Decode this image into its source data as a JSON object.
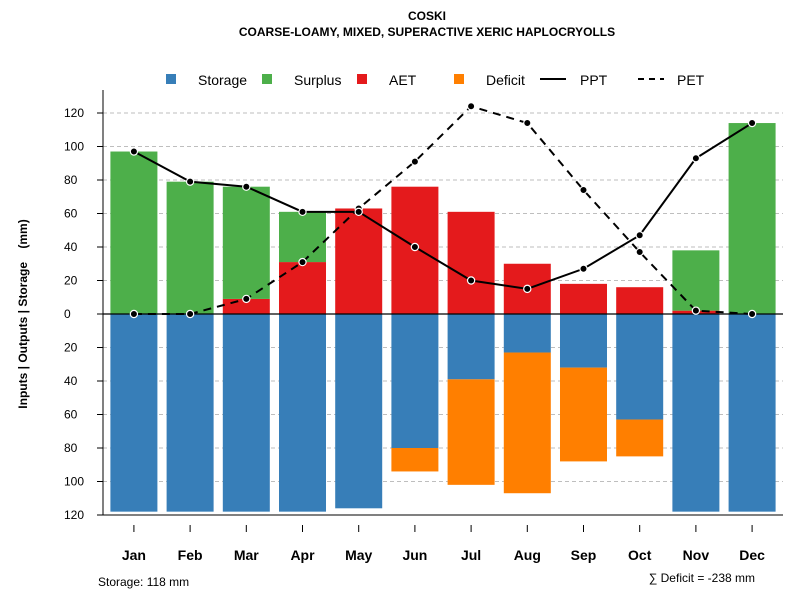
{
  "header": {
    "title": "COSKI",
    "subtitle": "COARSE-LOAMY, MIXED, SUPERACTIVE XERIC HAPLOCRYOLLS"
  },
  "legend": {
    "storage": "Storage",
    "surplus": "Surplus",
    "aet": "AET",
    "deficit": "Deficit",
    "ppt": "PPT",
    "pet": "PET"
  },
  "footer": {
    "storage_note": "Storage: 118 mm",
    "deficit_note": "∑ Deficit = -238 mm"
  },
  "colors": {
    "storage": "#377EB8",
    "surplus": "#4DAF4A",
    "aet": "#E41A1C",
    "deficit": "#FF7F00",
    "line": "#000000",
    "grid": "#BEBEBE"
  },
  "chart_data": {
    "type": "bar",
    "title": "COSKI",
    "subtitle": "COARSE-LOAMY, MIXED, SUPERACTIVE XERIC HAPLOCRYOLLS",
    "ylabel": "Inputs | Outputs | Storage    (mm)",
    "ylim": [
      -120,
      130
    ],
    "yticks": [
      120,
      100,
      80,
      60,
      40,
      20,
      0,
      -20,
      -40,
      -60,
      -80,
      -100,
      -120
    ],
    "ytick_labels": [
      "120",
      "100",
      "80",
      "60",
      "40",
      "20",
      "0",
      "20",
      "40",
      "60",
      "80",
      "100",
      "120"
    ],
    "categories": [
      "Jan",
      "Feb",
      "Mar",
      "Apr",
      "May",
      "Jun",
      "Jul",
      "Aug",
      "Sep",
      "Oct",
      "Nov",
      "Dec"
    ],
    "series": [
      {
        "name": "AET",
        "kind": "bar-up",
        "values": [
          0,
          0,
          9,
          31,
          63,
          76,
          61,
          30,
          18,
          16,
          2,
          0
        ]
      },
      {
        "name": "Surplus",
        "kind": "bar-up",
        "values": [
          97,
          79,
          67,
          30,
          0,
          0,
          0,
          0,
          0,
          0,
          36,
          114
        ]
      },
      {
        "name": "Storage",
        "kind": "bar-down",
        "values": [
          118,
          118,
          118,
          118,
          116,
          80,
          39,
          23,
          32,
          63,
          118,
          118
        ]
      },
      {
        "name": "Deficit",
        "kind": "bar-down",
        "values": [
          0,
          0,
          0,
          0,
          0,
          14,
          63,
          84,
          56,
          22,
          0,
          0
        ]
      },
      {
        "name": "PPT",
        "kind": "line",
        "values": [
          97,
          79,
          76,
          61,
          61,
          40,
          20,
          15,
          27,
          47,
          93,
          114
        ]
      },
      {
        "name": "PET",
        "kind": "line-dashed",
        "values": [
          0,
          0,
          9,
          31,
          63,
          91,
          124,
          114,
          74,
          37,
          2,
          0
        ]
      }
    ]
  }
}
